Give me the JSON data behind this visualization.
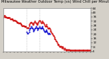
{
  "title": "Milwaukee Weather Outdoor Temp (vs) Wind Chill per Minute (Last 24 Hours)",
  "bg_color": "#d4d0c8",
  "plot_bg_color": "#ffffff",
  "temp_color": "#cc0000",
  "windchill_color": "#0000cc",
  "ylim": [
    4,
    44
  ],
  "yticks": [
    4,
    8,
    12,
    16,
    20,
    24,
    28,
    32,
    36,
    40,
    44
  ],
  "vline_positions": [
    0.265,
    0.415
  ],
  "vline_color": "#b0b0b0",
  "temp_data_x": [
    0.0,
    0.007,
    0.014,
    0.02,
    0.027,
    0.034,
    0.04,
    0.047,
    0.054,
    0.06,
    0.067,
    0.074,
    0.081,
    0.087,
    0.094,
    0.101,
    0.107,
    0.114,
    0.121,
    0.128,
    0.134,
    0.141,
    0.148,
    0.154,
    0.161,
    0.168,
    0.175,
    0.181,
    0.188,
    0.195,
    0.201,
    0.208,
    0.215,
    0.221,
    0.228,
    0.235,
    0.242,
    0.248,
    0.255,
    0.262,
    0.268,
    0.275,
    0.282,
    0.288,
    0.295,
    0.302,
    0.309,
    0.315,
    0.322,
    0.329,
    0.335,
    0.342,
    0.349,
    0.356,
    0.362,
    0.369,
    0.376,
    0.382,
    0.389,
    0.396,
    0.402,
    0.409,
    0.416,
    0.423,
    0.429,
    0.436,
    0.443,
    0.449,
    0.456,
    0.463,
    0.47,
    0.476,
    0.483,
    0.49,
    0.496,
    0.503,
    0.51,
    0.516,
    0.523,
    0.53,
    0.537,
    0.543,
    0.55,
    0.557,
    0.563,
    0.57,
    0.577,
    0.584,
    0.59,
    0.597,
    0.604,
    0.61,
    0.617,
    0.624,
    0.63,
    0.637,
    0.644,
    0.651,
    0.657,
    0.664,
    0.671,
    0.677,
    0.684,
    0.691,
    0.697,
    0.704,
    0.711,
    0.718,
    0.724,
    0.731,
    0.738,
    0.744,
    0.751,
    0.758,
    0.764,
    0.771,
    0.778,
    0.785,
    0.791,
    0.798,
    0.805,
    0.811,
    0.818,
    0.825,
    0.831,
    0.838,
    0.845,
    0.852,
    0.858,
    0.865,
    0.872,
    0.878,
    0.885,
    0.892,
    0.899,
    0.905,
    0.912,
    0.919,
    0.925,
    0.932,
    0.939,
    0.945,
    0.952,
    0.959,
    0.966,
    0.972,
    0.979,
    0.986,
    0.992,
    0.999
  ],
  "temp_data_y": [
    36,
    37,
    37,
    36,
    36,
    36,
    35,
    35,
    35,
    35,
    35,
    35,
    34,
    34,
    34,
    34,
    34,
    33,
    33,
    33,
    33,
    32,
    32,
    31,
    31,
    31,
    30,
    30,
    30,
    30,
    29,
    29,
    28,
    28,
    28,
    28,
    27,
    27,
    27,
    27,
    26,
    26,
    26,
    26,
    28,
    29,
    30,
    31,
    31,
    30,
    29,
    29,
    30,
    31,
    32,
    31,
    30,
    29,
    29,
    30,
    31,
    32,
    33,
    32,
    31,
    30,
    31,
    32,
    31,
    30,
    29,
    28,
    27,
    28,
    29,
    27,
    26,
    25,
    26,
    25,
    24,
    23,
    22,
    21,
    20,
    19,
    18,
    17,
    16,
    15,
    14,
    13,
    12,
    11,
    10,
    10,
    9,
    8,
    9,
    8,
    8,
    7,
    8,
    7,
    6,
    7,
    6,
    5,
    6,
    5,
    6,
    5,
    6,
    5,
    5,
    5,
    5,
    5,
    5,
    5,
    5,
    5,
    5,
    5,
    5,
    5,
    5,
    5,
    5,
    5,
    5,
    5,
    5,
    5,
    5,
    5,
    5,
    5,
    5,
    5,
    5,
    5,
    5,
    5,
    5,
    5,
    5,
    5,
    5,
    5
  ],
  "windchill_data_x": [
    0.268,
    0.275,
    0.282,
    0.295,
    0.302,
    0.309,
    0.315,
    0.322,
    0.329,
    0.335,
    0.342,
    0.349,
    0.356,
    0.362,
    0.369,
    0.376,
    0.382,
    0.389,
    0.396,
    0.402,
    0.409,
    0.416,
    0.423,
    0.429,
    0.436,
    0.443,
    0.449,
    0.456,
    0.463,
    0.47,
    0.476,
    0.483,
    0.49,
    0.496,
    0.503,
    0.51,
    0.516,
    0.523,
    0.53
  ],
  "windchill_data_y": [
    22,
    21,
    21,
    22,
    24,
    25,
    26,
    27,
    26,
    25,
    24,
    23,
    24,
    25,
    26,
    27,
    26,
    25,
    24,
    25,
    26,
    27,
    26,
    25,
    26,
    27,
    26,
    25,
    24,
    23,
    22,
    23,
    24,
    23,
    22,
    21,
    20,
    21,
    20
  ],
  "title_fontsize": 3.8,
  "tick_fontsize": 3.2,
  "marker_size": 1.2,
  "xtick_count": 24,
  "xlim": [
    0,
    1
  ]
}
